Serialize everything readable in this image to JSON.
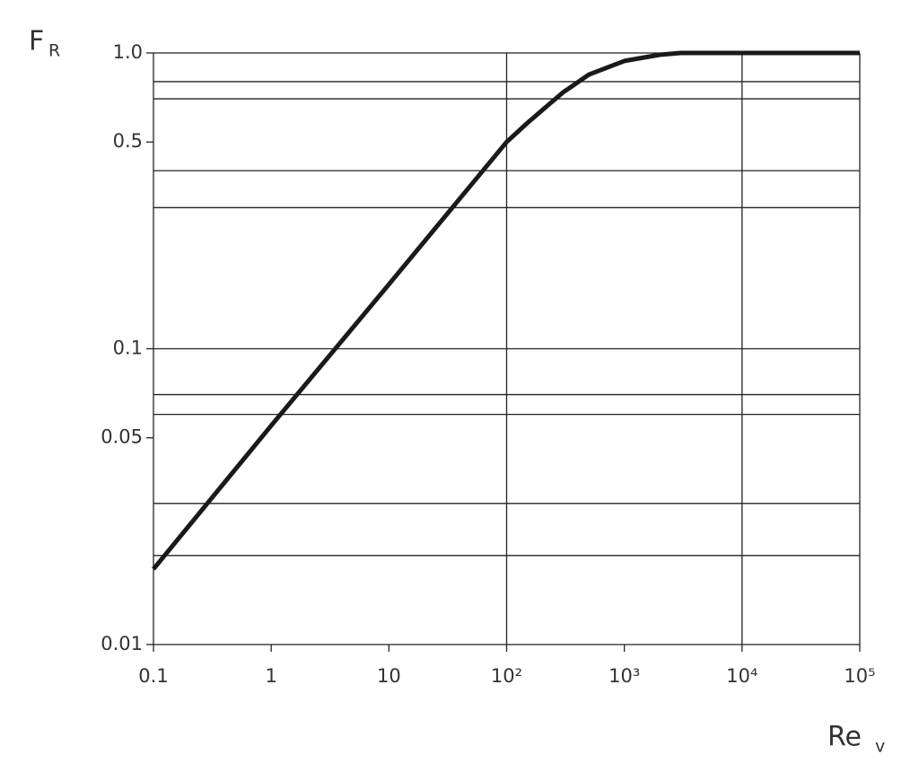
{
  "chart_data": {
    "type": "line",
    "xscale": "log",
    "yscale": "log",
    "ylabel": {
      "text": "F",
      "sub": "R"
    },
    "xlabel": {
      "text": "Re",
      "sub": "v"
    },
    "xlim": [
      0.1,
      100000
    ],
    "ylim": [
      0.01,
      1
    ],
    "xticks": [
      0.1,
      1,
      10,
      {
        "value": 100,
        "label": "10²"
      },
      {
        "value": 1000,
        "label": "10³"
      },
      {
        "value": 10000,
        "label": "10⁴"
      },
      {
        "value": 100000,
        "label": "10⁵"
      }
    ],
    "yticks": [
      {
        "value": 1,
        "label": "1.0"
      },
      0.5,
      0.1,
      0.05,
      0.01
    ],
    "xgrid": [
      100,
      10000
    ],
    "ygrid": [
      0.8,
      0.7,
      0.4,
      0.3,
      0.1,
      0.07,
      0.06,
      0.03,
      0.02
    ],
    "color": "#1a1a1a",
    "x": [
      0.1,
      1,
      10,
      100,
      150,
      200,
      300,
      500,
      1000,
      2000,
      3000,
      10000,
      100000
    ],
    "values": [
      0.018,
      0.055,
      0.165,
      0.5,
      0.58,
      0.64,
      0.735,
      0.845,
      0.94,
      0.986,
      1,
      1,
      1
    ]
  }
}
